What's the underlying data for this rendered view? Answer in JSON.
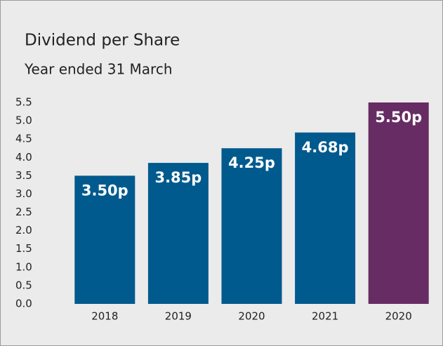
{
  "chart_data": {
    "type": "bar",
    "title": "Dividend per Share",
    "subtitle": "Year ended 31 March",
    "categories": [
      "2018",
      "2019",
      "2020",
      "2021",
      "2020"
    ],
    "values": [
      3.5,
      3.85,
      4.25,
      4.68,
      5.5
    ],
    "value_labels": [
      "3.50p",
      "3.85p",
      "4.25p",
      "4.68p",
      "5.50p"
    ],
    "colors": [
      "#005a8e",
      "#005a8e",
      "#005a8e",
      "#005a8e",
      "#662c63"
    ],
    "ylim": [
      0,
      5.5
    ],
    "yticks": [
      {
        "value": 0,
        "label": "0.0"
      },
      0.5,
      {
        "value": 1,
        "label": "1.0"
      },
      1.5,
      {
        "value": 2,
        "label": "2.0"
      },
      2.5,
      {
        "value": 3,
        "label": "3.0"
      },
      3.5,
      {
        "value": 4,
        "label": "4.0"
      },
      4.5,
      {
        "value": 5,
        "label": "5.0"
      },
      5.5
    ],
    "grid": false
  }
}
